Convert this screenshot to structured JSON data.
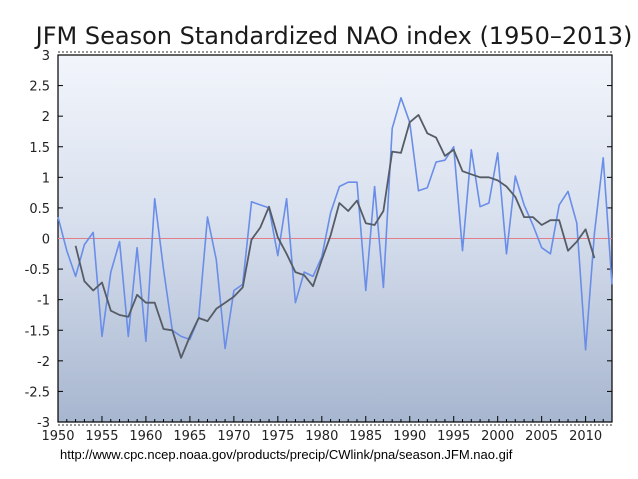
{
  "chart_data": {
    "type": "line",
    "title": "JFM Season Standardized NAO index (1950–2013)",
    "xlabel": "",
    "ylabel": "",
    "xlim": [
      1950,
      2013
    ],
    "ylim": [
      -3,
      3
    ],
    "xticks": [
      1950,
      1955,
      1960,
      1965,
      1970,
      1975,
      1980,
      1985,
      1990,
      1995,
      2000,
      2005,
      2010
    ],
    "yticks": [
      "3",
      "2.5",
      "2",
      "1.5",
      "1",
      "0.5",
      "0",
      "-0.5",
      "-1",
      "-1.5",
      "-2",
      "-2.5",
      "-3"
    ],
    "ytick_values": [
      3,
      2.5,
      2,
      1.5,
      1,
      0.5,
      0,
      -0.5,
      -1,
      -1.5,
      -2,
      -2.5,
      -3
    ],
    "zero_line": 0,
    "series": [
      {
        "color": "#6a8ee8",
        "x": [
          1950,
          1951,
          1952,
          1953,
          1954,
          1955,
          1956,
          1957,
          1958,
          1959,
          1960,
          1961,
          1962,
          1963,
          1964,
          1965,
          1966,
          1967,
          1968,
          1969,
          1970,
          1971,
          1972,
          1973,
          1974,
          1975,
          1976,
          1977,
          1978,
          1979,
          1980,
          1981,
          1982,
          1983,
          1984,
          1985,
          1986,
          1987,
          1988,
          1989,
          1990,
          1991,
          1992,
          1993,
          1994,
          1995,
          1996,
          1997,
          1998,
          1999,
          2000,
          2001,
          2002,
          2003,
          2004,
          2005,
          2006,
          2007,
          2008,
          2009,
          2010,
          2011,
          2012,
          2013
        ],
        "values": [
          0.35,
          -0.2,
          -0.62,
          -0.1,
          0.1,
          -1.6,
          -0.55,
          -0.05,
          -1.6,
          -0.15,
          -1.68,
          0.65,
          -0.5,
          -1.5,
          -1.6,
          -1.65,
          -1.3,
          0.35,
          -0.35,
          -1.8,
          -0.85,
          -0.75,
          0.6,
          0.55,
          0.5,
          -0.28,
          0.65,
          -1.05,
          -0.55,
          -0.62,
          -0.3,
          0.42,
          0.85,
          0.92,
          0.92,
          -0.85,
          0.85,
          -0.8,
          1.8,
          2.3,
          1.9,
          0.78,
          0.83,
          1.25,
          1.28,
          1.5,
          -0.2,
          1.45,
          0.52,
          0.58,
          1.4,
          -0.25,
          1.02,
          0.55,
          0.22,
          -0.15,
          -0.25,
          0.55,
          0.77,
          0.25,
          -1.82,
          0.08,
          1.32,
          -0.75
        ]
      },
      {
        "color": "#555c66",
        "x": [
          1952,
          1953,
          1954,
          1955,
          1956,
          1957,
          1958,
          1959,
          1960,
          1961,
          1962,
          1963,
          1964,
          1965,
          1966,
          1967,
          1968,
          1969,
          1970,
          1971,
          1972,
          1973,
          1974,
          1975,
          1976,
          1977,
          1978,
          1979,
          1980,
          1981,
          1982,
          1983,
          1984,
          1985,
          1986,
          1987,
          1988,
          1989,
          1990,
          1991,
          1992,
          1993,
          1994,
          1995,
          1996,
          1997,
          1998,
          1999,
          2000,
          2001,
          2002,
          2003,
          2004,
          2005,
          2006,
          2007,
          2008,
          2009,
          2010,
          2011
        ],
        "values": [
          -0.12,
          -0.7,
          -0.85,
          -0.72,
          -1.18,
          -1.25,
          -1.28,
          -0.92,
          -1.05,
          -1.05,
          -1.48,
          -1.5,
          -1.95,
          -1.6,
          -1.3,
          -1.35,
          -1.15,
          -1.05,
          -0.95,
          -0.8,
          -0.02,
          0.18,
          0.52,
          0.02,
          -0.25,
          -0.55,
          -0.6,
          -0.78,
          -0.35,
          0.05,
          0.58,
          0.45,
          0.62,
          0.25,
          0.22,
          0.45,
          1.42,
          1.4,
          1.9,
          2.02,
          1.72,
          1.65,
          1.35,
          1.45,
          1.1,
          1.05,
          1.0,
          1.0,
          0.95,
          0.85,
          0.68,
          0.35,
          0.35,
          0.22,
          0.3,
          0.3,
          -0.2,
          -0.05,
          0.15,
          -0.32
        ]
      }
    ]
  },
  "caption": "http://www.cpc.ncep.noaa.gov/products/precip/CWlink/pna/season.JFM.nao.gif"
}
